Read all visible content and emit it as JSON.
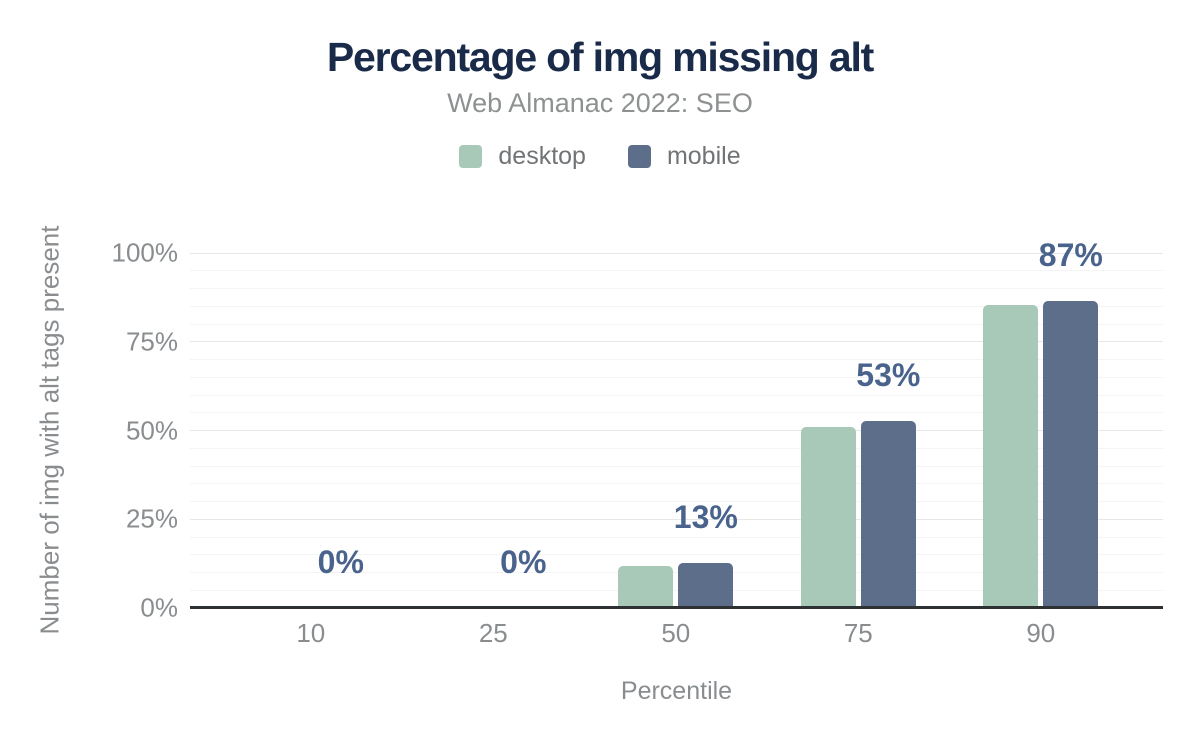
{
  "header": {
    "title": "Percentage of img missing alt",
    "subtitle": "Web Almanac 2022: SEO"
  },
  "chart_data": {
    "type": "bar",
    "title": "Percentage of img missing alt",
    "subtitle": "Web Almanac 2022: SEO",
    "xlabel": "Percentile",
    "ylabel": "Number of img with alt tags present",
    "categories": [
      "10",
      "25",
      "50",
      "75",
      "90"
    ],
    "series": [
      {
        "name": "desktop",
        "color": "#a8c9b8",
        "values": [
          0,
          0,
          11.8,
          51.0,
          85.3
        ]
      },
      {
        "name": "mobile",
        "color": "#5d6e8b",
        "values": [
          0,
          0,
          12.6,
          52.7,
          86.6
        ]
      }
    ],
    "value_labels": {
      "anchored_series": "mobile",
      "texts": [
        "0%",
        "0%",
        "13%",
        "53%",
        "87%"
      ]
    },
    "ylim": [
      0,
      100
    ],
    "yticks": {
      "labels": [
        "0%",
        "25%",
        "50%",
        "75%",
        "100%"
      ],
      "values": [
        0,
        25,
        50,
        75,
        100
      ]
    },
    "grid": {
      "minor_step": 5,
      "major_step": 25,
      "minor_color": "#f4f4f4",
      "major_color": "#e7e7e7",
      "on": true
    },
    "legend_position": "top"
  },
  "colors": {
    "title_text": "#1a2b4a",
    "subtitle_text": "#8e9192",
    "axis_text": "#8a8d8f",
    "value_label_text": "#49638c",
    "axis_line": "#2e3134",
    "background": "#ffffff"
  }
}
